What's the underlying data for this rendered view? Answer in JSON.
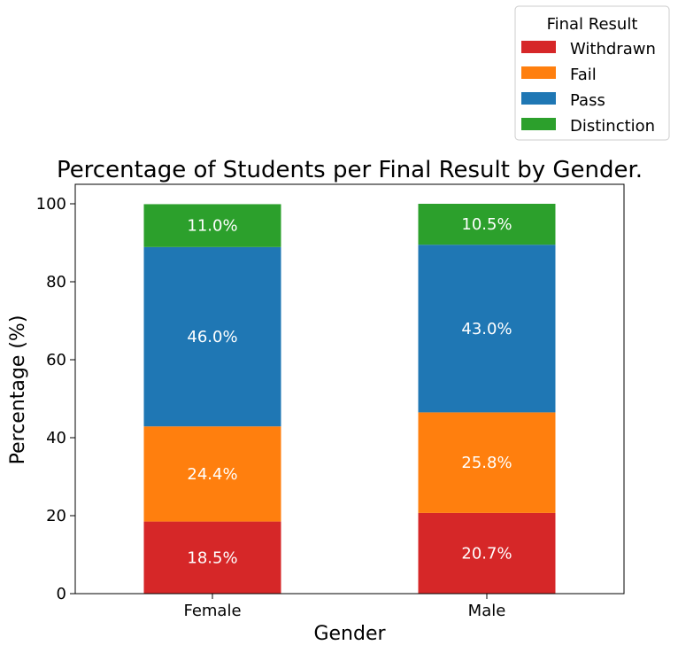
{
  "chart_data": {
    "type": "bar",
    "stacked": true,
    "title": "Percentage of Students per Final Result by Gender.",
    "xlabel": "Gender",
    "ylabel": "Percentage (%)",
    "categories": [
      "Female",
      "Male"
    ],
    "ylim": [
      0,
      105
    ],
    "yticks": [
      0,
      20,
      40,
      60,
      80,
      100
    ],
    "grid": false,
    "legend": {
      "title": "Final Result",
      "placement": "top-right, above plot"
    },
    "series": [
      {
        "name": "Withdrawn",
        "color": "#d62728",
        "values": [
          18.5,
          20.7
        ],
        "labels": [
          "18.5%",
          "20.7%"
        ]
      },
      {
        "name": "Fail",
        "color": "#ff7f0e",
        "values": [
          24.4,
          25.8
        ],
        "labels": [
          "24.4%",
          "25.8%"
        ]
      },
      {
        "name": "Pass",
        "color": "#1f77b4",
        "values": [
          46.0,
          43.0
        ],
        "labels": [
          "46.0%",
          "43.0%"
        ]
      },
      {
        "name": "Distinction",
        "color": "#2ca02c",
        "values": [
          11.0,
          10.5
        ],
        "labels": [
          "11.0%",
          "10.5%"
        ]
      }
    ]
  }
}
